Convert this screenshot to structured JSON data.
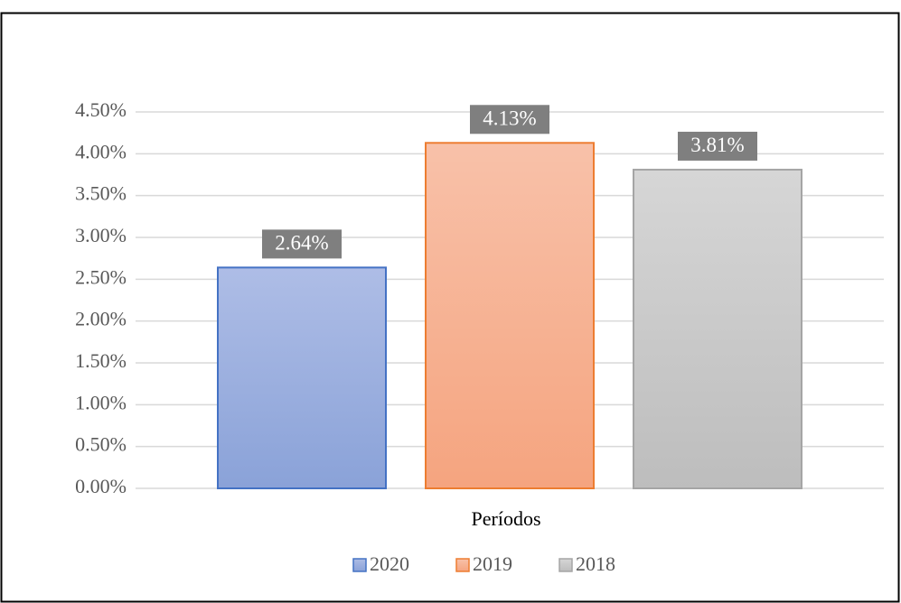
{
  "chart_data": {
    "type": "bar",
    "categories": [
      "Períodos"
    ],
    "series": [
      {
        "name": "2020",
        "color": "#4472c4",
        "gradient": [
          "#aebde6",
          "#8aa2d8"
        ],
        "values": [
          2.64
        ],
        "value_labels": [
          "2.64%"
        ]
      },
      {
        "name": "2019",
        "color": "#ed7d31",
        "gradient": [
          "#f8c1a9",
          "#f5a47f"
        ],
        "values": [
          4.13
        ],
        "value_labels": [
          "4.13%"
        ]
      },
      {
        "name": "2018",
        "color": "#a5a5a5",
        "gradient": [
          "#d6d6d6",
          "#bdbdbd"
        ],
        "values": [
          3.81
        ],
        "value_labels": [
          "3.81%"
        ]
      }
    ],
    "ylim": [
      0,
      4.5
    ],
    "yticks": [
      {
        "value": 0,
        "label": "0.00%"
      },
      {
        "value": 0.5,
        "label": "0.50%"
      },
      {
        "value": 1,
        "label": "1.00%"
      },
      {
        "value": 1.5,
        "label": "1.50%"
      },
      {
        "value": 2,
        "label": "2.00%"
      },
      {
        "value": 2.5,
        "label": "2.50%"
      },
      {
        "value": 3,
        "label": "3.00%"
      },
      {
        "value": 3.5,
        "label": "3.50%"
      },
      {
        "value": 4,
        "label": "4.00%"
      },
      {
        "value": 4.5,
        "label": "4.50%"
      }
    ],
    "grid": true,
    "legend": "bottom"
  }
}
